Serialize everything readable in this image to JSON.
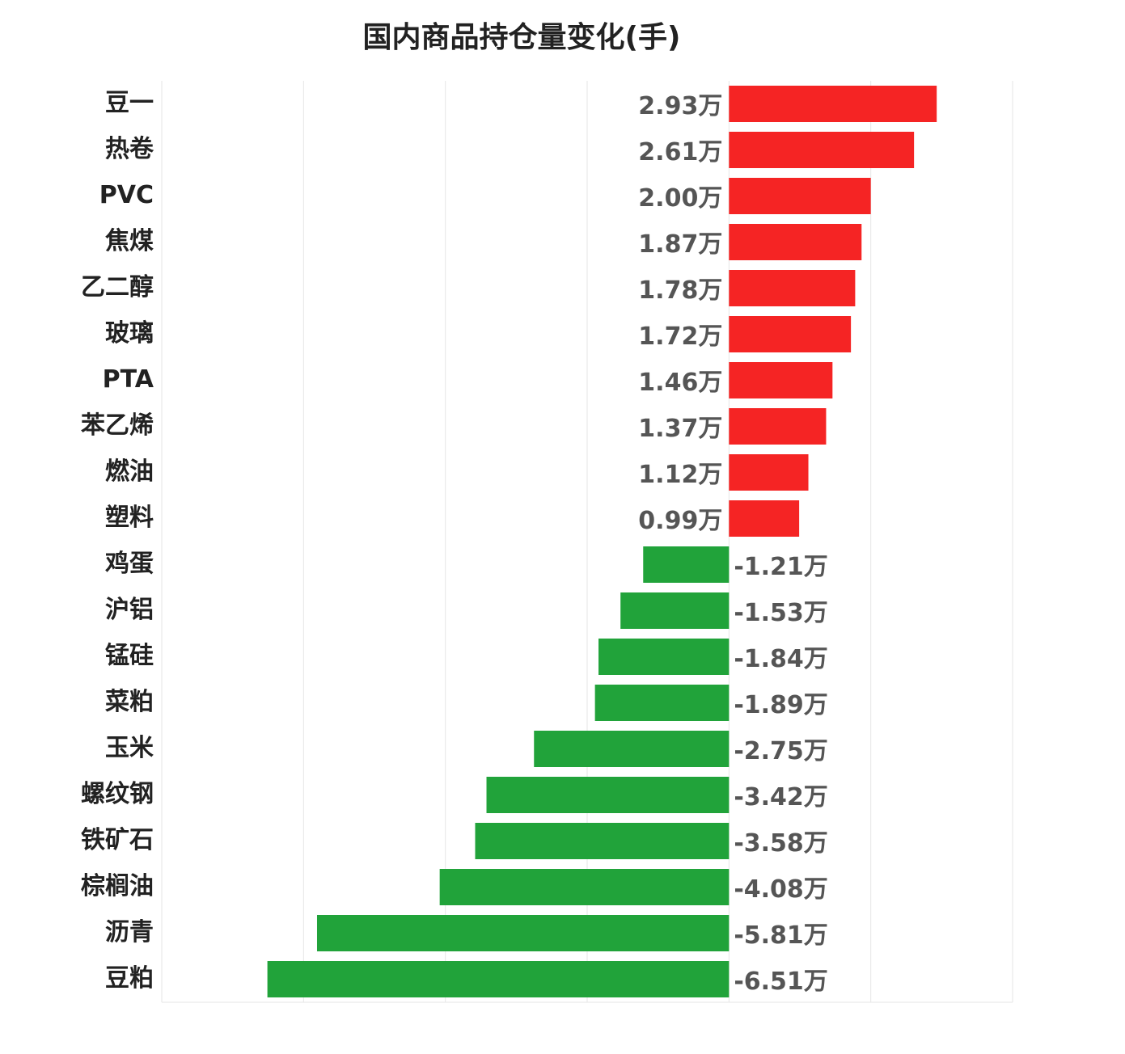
{
  "chart_data": {
    "type": "bar",
    "orientation": "horizontal",
    "title": "国内商品持仓量变化(手)",
    "categories": [
      "豆一",
      "热卷",
      "PVC",
      "焦煤",
      "乙二醇",
      "玻璃",
      "PTA",
      "苯乙烯",
      "燃油",
      "塑料",
      "鸡蛋",
      "沪铝",
      "锰硅",
      "菜粕",
      "玉米",
      "螺纹钢",
      "铁矿石",
      "棕榈油",
      "沥青",
      "豆粕"
    ],
    "values": [
      2.93,
      2.61,
      2.0,
      1.87,
      1.78,
      1.72,
      1.46,
      1.37,
      1.12,
      0.99,
      -1.21,
      -1.53,
      -1.84,
      -1.89,
      -2.75,
      -3.42,
      -3.58,
      -4.08,
      -5.81,
      -6.51
    ],
    "value_labels": [
      "2.93万",
      "2.61万",
      "2.00万",
      "1.87万",
      "1.78万",
      "1.72万",
      "1.46万",
      "1.37万",
      "1.12万",
      "0.99万",
      "-1.21万",
      "-1.53万",
      "-1.84万",
      "-1.89万",
      "-2.75万",
      "-3.42万",
      "-3.58万",
      "-4.08万",
      "-5.81万",
      "-6.51万"
    ],
    "positive_color": "#f52424",
    "negative_color": "#21a33a",
    "xlim": [
      -8,
      4
    ],
    "xticks": [
      -8,
      -6,
      -4,
      -2,
      0,
      2,
      4
    ],
    "grid": true
  }
}
